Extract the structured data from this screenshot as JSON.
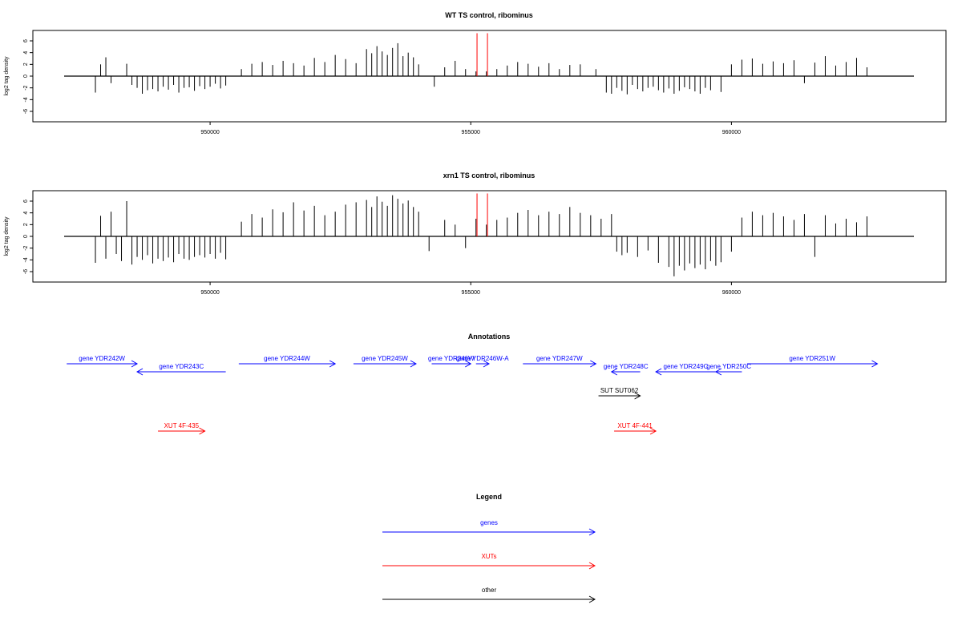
{
  "panels": [
    {
      "title": "WT TS control, ribominus",
      "ylabel": "log2 tag density",
      "yticks": [
        6,
        4,
        2,
        0,
        -2,
        -4,
        -6
      ],
      "xticks": [
        950000,
        955000,
        960000
      ],
      "ylim": [
        -7.5,
        7.5
      ],
      "xlim": [
        947200,
        963500
      ]
    },
    {
      "title": "xrn1 TS control, ribominus",
      "ylabel": "log2 tag density",
      "yticks": [
        6,
        4,
        2,
        0,
        -2,
        -4,
        -6
      ],
      "xticks": [
        950000,
        955000,
        960000
      ],
      "ylim": [
        -7.5,
        7.5
      ],
      "xlim": [
        947200,
        963500
      ]
    }
  ],
  "annotations": {
    "title": "Annotations",
    "features": [
      {
        "label": "gene YDR242W",
        "start": 947250,
        "end": 948600,
        "strand": "+",
        "color": "#0000ff",
        "row": 0
      },
      {
        "label": "gene YDR243C",
        "start": 948600,
        "end": 950300,
        "strand": "-",
        "color": "#0000ff",
        "row": 1
      },
      {
        "label": "gene YDR244W",
        "start": 950550,
        "end": 952400,
        "strand": "+",
        "color": "#0000ff",
        "row": 0
      },
      {
        "label": "gene YDR245W",
        "start": 952750,
        "end": 953950,
        "strand": "+",
        "color": "#0000ff",
        "row": 0
      },
      {
        "label": "gene YDR246W",
        "start": 954250,
        "end": 955000,
        "strand": "+",
        "color": "#0000ff",
        "row": 0
      },
      {
        "label": "gene YDR246W-A",
        "start": 955100,
        "end": 955350,
        "strand": "+",
        "color": "#0000ff",
        "row": 0
      },
      {
        "label": "gene YDR247W",
        "start": 956000,
        "end": 957400,
        "strand": "+",
        "color": "#0000ff",
        "row": 0
      },
      {
        "label": "gene YDR248C",
        "start": 957700,
        "end": 958250,
        "strand": "-",
        "color": "#0000ff",
        "row": 1
      },
      {
        "label": "gene YDR249C",
        "start": 958550,
        "end": 959700,
        "strand": "-",
        "color": "#0000ff",
        "row": 1
      },
      {
        "label": "gene YDR250C",
        "start": 959700,
        "end": 960200,
        "strand": "-",
        "color": "#0000ff",
        "row": 1
      },
      {
        "label": "gene YDR251W",
        "start": 960300,
        "end": 962800,
        "strand": "+",
        "color": "#0000ff",
        "row": 0
      },
      {
        "label": "SUT SUT062",
        "start": 957450,
        "end": 958250,
        "strand": "+",
        "color": "#000000",
        "row": 2
      },
      {
        "label": "XUT 4F-435",
        "start": 949000,
        "end": 949900,
        "strand": "+",
        "color": "#ff0000",
        "row": 4
      },
      {
        "label": "XUT 4F-441",
        "start": 957750,
        "end": 958550,
        "strand": "+",
        "color": "#ff0000",
        "row": 4
      }
    ]
  },
  "legend": {
    "title": "Legend",
    "items": [
      {
        "label": "genes",
        "color": "#0000ff"
      },
      {
        "label": "XUTs",
        "color": "#ff0000"
      },
      {
        "label": "other",
        "color": "#000000"
      }
    ]
  },
  "chart_data": [
    {
      "type": "bar",
      "title": "WT TS control, ribominus",
      "ylabel": "log2 tag density",
      "xlim": [
        947200,
        963500
      ],
      "ylim": [
        -7.5,
        7.5
      ],
      "yticks": [
        -6,
        -4,
        -2,
        0,
        2,
        4,
        6
      ],
      "xticks": [
        950000,
        955000,
        960000
      ],
      "highlight_markers": {
        "color": "#ff0000",
        "x": [
          955120,
          955320
        ],
        "value": 7.3
      },
      "x": [
        947800,
        947900,
        948000,
        948100,
        948400,
        948500,
        948600,
        948700,
        948800,
        948900,
        949000,
        949100,
        949200,
        949300,
        949400,
        949500,
        949600,
        949700,
        949800,
        949900,
        950000,
        950100,
        950200,
        950300,
        950600,
        950800,
        951000,
        951200,
        951400,
        951600,
        951800,
        952000,
        952200,
        952400,
        952600,
        952800,
        953000,
        953100,
        953200,
        953300,
        953400,
        953500,
        953600,
        953700,
        953800,
        953900,
        954000,
        954300,
        954500,
        954700,
        954900,
        955100,
        955300,
        955500,
        955700,
        955900,
        956100,
        956300,
        956500,
        956700,
        956900,
        957100,
        957400,
        957600,
        957700,
        957800,
        957900,
        958000,
        958100,
        958200,
        958300,
        958400,
        958500,
        958600,
        958700,
        958800,
        958900,
        959000,
        959100,
        959200,
        959300,
        959400,
        959500,
        959600,
        959800,
        960000,
        960200,
        960400,
        960600,
        960800,
        961000,
        961200,
        961400,
        961600,
        961800,
        962000,
        962200,
        962400,
        962600
      ],
      "values": [
        -2.8,
        2.0,
        3.2,
        -1.2,
        2.1,
        -1.5,
        -2.0,
        -3.0,
        -2.4,
        -2.2,
        -2.6,
        -1.8,
        -2.3,
        -1.5,
        -2.8,
        -2.0,
        -1.9,
        -2.5,
        -1.7,
        -2.2,
        -1.8,
        -1.3,
        -2.1,
        -1.6,
        1.2,
        2.1,
        2.4,
        1.9,
        2.6,
        2.2,
        1.8,
        3.1,
        2.4,
        3.6,
        2.9,
        2.2,
        4.6,
        3.9,
        5.1,
        4.2,
        3.6,
        4.8,
        5.6,
        3.4,
        4.0,
        3.2,
        2.0,
        -1.8,
        1.5,
        2.6,
        1.2,
        0.8,
        0.8,
        1.2,
        1.8,
        2.4,
        2.1,
        1.6,
        2.2,
        1.2,
        1.9,
        2.0,
        1.2,
        -2.8,
        -3.0,
        -2.0,
        -2.5,
        -3.1,
        -1.5,
        -2.2,
        -2.6,
        -2.0,
        -1.8,
        -2.4,
        -2.8,
        -2.1,
        -3.0,
        -2.5,
        -1.9,
        -2.2,
        -2.6,
        -3.0,
        -2.0,
        -2.4,
        -2.7,
        2.0,
        2.8,
        3.0,
        2.1,
        2.5,
        2.2,
        2.7,
        -1.2,
        2.3,
        3.4,
        1.8,
        2.4,
        3.1,
        1.5
      ]
    },
    {
      "type": "bar",
      "title": "xrn1 TS control, ribominus",
      "ylabel": "log2 tag density",
      "xlim": [
        947200,
        963500
      ],
      "ylim": [
        -7.5,
        7.5
      ],
      "yticks": [
        -6,
        -4,
        -2,
        0,
        2,
        4,
        6
      ],
      "xticks": [
        950000,
        955000,
        960000
      ],
      "highlight_markers": {
        "color": "#ff0000",
        "x": [
          955120,
          955320
        ],
        "value": 7.3
      },
      "x": [
        947800,
        947900,
        948000,
        948100,
        948200,
        948300,
        948400,
        948500,
        948600,
        948700,
        948800,
        948900,
        949000,
        949100,
        949200,
        949300,
        949400,
        949500,
        949600,
        949700,
        949800,
        949900,
        950000,
        950100,
        950200,
        950300,
        950600,
        950800,
        951000,
        951200,
        951400,
        951600,
        951800,
        952000,
        952200,
        952400,
        952600,
        952800,
        953000,
        953100,
        953200,
        953300,
        953400,
        953500,
        953600,
        953700,
        953800,
        953900,
        954000,
        954200,
        954500,
        954700,
        954900,
        955100,
        955300,
        955500,
        955700,
        955900,
        956100,
        956300,
        956500,
        956700,
        956900,
        957100,
        957300,
        957500,
        957700,
        957800,
        957900,
        958000,
        958200,
        958400,
        958600,
        958800,
        958900,
        959000,
        959100,
        959200,
        959300,
        959400,
        959500,
        959600,
        959700,
        959800,
        960000,
        960200,
        960400,
        960600,
        960800,
        961000,
        961200,
        961400,
        961600,
        961800,
        962000,
        962200,
        962400,
        962600
      ],
      "values": [
        -4.5,
        3.5,
        -3.8,
        4.2,
        -3.0,
        -4.2,
        6.0,
        -4.8,
        -3.5,
        -4.0,
        -3.2,
        -4.6,
        -3.8,
        -4.2,
        -3.6,
        -4.4,
        -3.0,
        -3.8,
        -4.0,
        -3.5,
        -3.2,
        -3.6,
        -3.0,
        -3.8,
        -2.8,
        -3.9,
        2.5,
        3.8,
        3.2,
        4.6,
        4.1,
        5.8,
        4.4,
        5.2,
        3.6,
        4.2,
        5.4,
        5.8,
        6.2,
        5.0,
        6.8,
        5.9,
        5.2,
        7.0,
        6.4,
        5.6,
        6.1,
        5.0,
        4.2,
        -2.5,
        2.8,
        2.0,
        -2.0,
        3.0,
        2.0,
        2.8,
        3.2,
        4.0,
        4.5,
        3.6,
        4.2,
        3.8,
        5.0,
        4.0,
        3.6,
        3.0,
        3.8,
        -2.6,
        -3.2,
        -2.8,
        -3.5,
        -2.4,
        -4.5,
        -5.2,
        -6.8,
        -5.0,
        -5.8,
        -4.6,
        -5.4,
        -4.8,
        -5.6,
        -4.2,
        -5.0,
        -4.4,
        -2.6,
        3.2,
        4.2,
        3.6,
        4.0,
        3.4,
        2.8,
        3.8,
        -3.5,
        3.6,
        2.2,
        3.0,
        2.4,
        3.4
      ]
    }
  ]
}
